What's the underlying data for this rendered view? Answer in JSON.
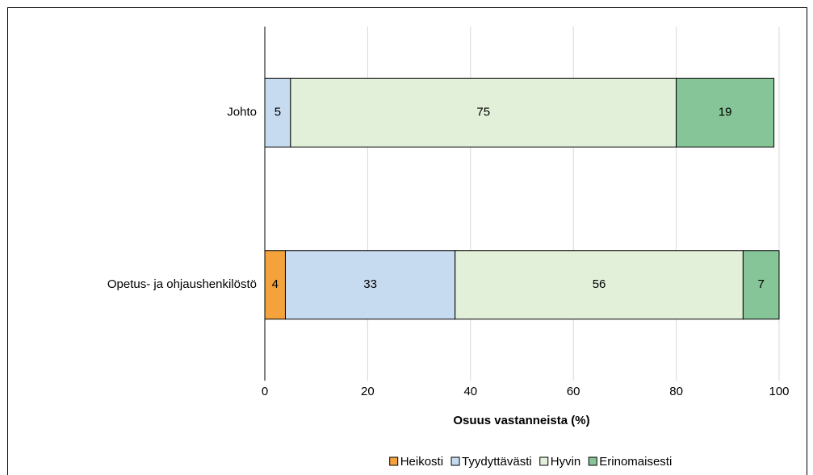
{
  "chart_data": {
    "type": "stacked-barh",
    "categories": [
      "Johto",
      "Opetus- ja ohjaushenkilöstö"
    ],
    "series": [
      {
        "name": "Heikosti",
        "color": "#f4a23b",
        "values": [
          null,
          4
        ]
      },
      {
        "name": "Tyydyttävästi",
        "color": "#c6daf0",
        "values": [
          5,
          33
        ]
      },
      {
        "name": "Hyvin",
        "color": "#e2f0d9",
        "values": [
          75,
          56
        ]
      },
      {
        "name": "Erinomaisesti",
        "color": "#86c597",
        "values": [
          19,
          7
        ]
      }
    ],
    "xlabel": "Osuus vastanneista (%)",
    "xlim": [
      0,
      100
    ],
    "xticks": [
      0,
      20,
      40,
      60,
      80,
      100
    ],
    "grid": true,
    "legend": "bottom"
  }
}
